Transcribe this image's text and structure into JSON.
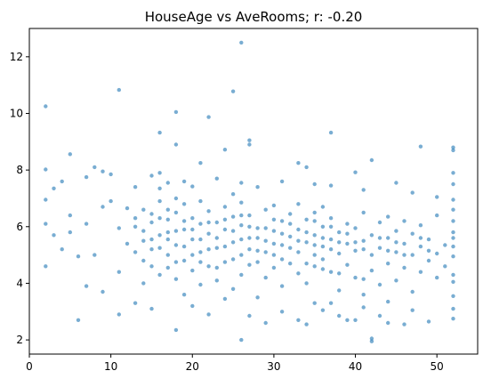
{
  "chart_data": {
    "type": "scatter",
    "title": "HouseAge vs AveRooms; r: -0.20",
    "xlabel": "",
    "ylabel": "",
    "xlim": [
      0,
      55
    ],
    "ylim": [
      1.5,
      13
    ],
    "xticks": [
      0,
      10,
      20,
      30,
      40,
      50
    ],
    "yticks": [
      2,
      4,
      6,
      8,
      10,
      12
    ],
    "grid": false,
    "marker_color": "#1f77b4",
    "marker_alpha": 0.6,
    "points": [
      [
        2,
        10.25
      ],
      [
        11,
        10.83
      ],
      [
        18,
        10.05
      ],
      [
        22,
        9.87
      ],
      [
        25,
        10.78
      ],
      [
        26,
        12.5
      ],
      [
        16,
        9.32
      ],
      [
        27,
        9.05
      ],
      [
        37,
        9.32
      ],
      [
        48,
        8.83
      ],
      [
        2,
        8.02
      ],
      [
        5,
        8.56
      ],
      [
        8,
        8.1
      ],
      [
        9,
        7.95
      ],
      [
        15,
        7.8
      ],
      [
        16,
        7.9
      ],
      [
        18,
        8.9
      ],
      [
        21,
        8.25
      ],
      [
        24,
        8.72
      ],
      [
        27,
        8.9
      ],
      [
        33,
        8.25
      ],
      [
        34,
        8.1
      ],
      [
        40,
        7.92
      ],
      [
        42,
        8.35
      ],
      [
        52,
        8.8
      ],
      [
        52,
        8.7
      ],
      [
        3,
        7.35
      ],
      [
        4,
        7.6
      ],
      [
        7,
        7.75
      ],
      [
        10,
        7.85
      ],
      [
        13,
        7.4
      ],
      [
        17,
        7.55
      ],
      [
        19,
        7.6
      ],
      [
        20,
        7.42
      ],
      [
        23,
        7.7
      ],
      [
        26,
        7.55
      ],
      [
        28,
        7.4
      ],
      [
        31,
        7.6
      ],
      [
        35,
        7.5
      ],
      [
        37,
        7.45
      ],
      [
        41,
        7.3
      ],
      [
        45,
        7.55
      ],
      [
        47,
        7.2
      ],
      [
        50,
        7.05
      ],
      [
        52,
        7.5
      ],
      [
        2,
        6.95
      ],
      [
        4,
        5.2
      ],
      [
        5,
        6.4
      ],
      [
        5,
        5.8
      ],
      [
        6,
        4.95
      ],
      [
        7,
        6.1
      ],
      [
        7,
        3.9
      ],
      [
        8,
        5.0
      ],
      [
        9,
        6.7
      ],
      [
        10,
        6.9
      ],
      [
        11,
        5.95
      ],
      [
        11,
        4.4
      ],
      [
        12,
        5.4
      ],
      [
        12,
        6.65
      ],
      [
        13,
        5.1
      ],
      [
        13,
        6.3
      ],
      [
        14,
        5.5
      ],
      [
        14,
        4.0
      ],
      [
        14,
        6.6
      ],
      [
        15,
        5.2
      ],
      [
        15,
        6.45
      ],
      [
        15,
        4.6
      ],
      [
        16,
        5.7
      ],
      [
        16,
        6.9
      ],
      [
        16,
        4.3
      ],
      [
        16,
        7.35
      ],
      [
        17,
        5.0
      ],
      [
        17,
        6.25
      ],
      [
        17,
        4.55
      ],
      [
        17,
        5.8
      ],
      [
        18,
        6.5
      ],
      [
        18,
        4.15
      ],
      [
        18,
        5.35
      ],
      [
        18,
        7.0
      ],
      [
        19,
        5.9
      ],
      [
        19,
        4.8
      ],
      [
        19,
        6.8
      ],
      [
        19,
        3.6
      ],
      [
        20,
        5.55
      ],
      [
        20,
        6.3
      ],
      [
        20,
        4.45
      ],
      [
        21,
        5.1
      ],
      [
        21,
        6.1
      ],
      [
        21,
        6.9
      ],
      [
        21,
        3.95
      ],
      [
        22,
        5.75
      ],
      [
        22,
        4.6
      ],
      [
        22,
        6.55
      ],
      [
        23,
        5.25
      ],
      [
        23,
        6.15
      ],
      [
        23,
        4.1
      ],
      [
        24,
        5.9
      ],
      [
        24,
        6.7
      ],
      [
        24,
        4.75
      ],
      [
        25,
        5.45
      ],
      [
        25,
        6.35
      ],
      [
        25,
        3.8
      ],
      [
        25,
        7.15
      ],
      [
        26,
        5.0
      ],
      [
        26,
        6.05
      ],
      [
        26,
        4.3
      ],
      [
        26,
        6.85
      ],
      [
        27,
        5.6
      ],
      [
        27,
        4.65
      ],
      [
        27,
        6.4
      ],
      [
        28,
        5.15
      ],
      [
        28,
        5.95
      ],
      [
        28,
        3.5
      ],
      [
        29,
        5.5
      ],
      [
        29,
        6.6
      ],
      [
        29,
        4.2
      ],
      [
        30,
        5.0
      ],
      [
        30,
        5.85
      ],
      [
        30,
        6.75
      ],
      [
        30,
        4.55
      ],
      [
        31,
        5.35
      ],
      [
        31,
        6.2
      ],
      [
        31,
        3.9
      ],
      [
        32,
        5.65
      ],
      [
        32,
        4.7
      ],
      [
        32,
        6.45
      ],
      [
        33,
        5.1
      ],
      [
        33,
        5.9
      ],
      [
        33,
        4.35
      ],
      [
        33,
        6.8
      ],
      [
        34,
        5.45
      ],
      [
        34,
        6.25
      ],
      [
        34,
        4.0
      ],
      [
        35,
        5.0
      ],
      [
        35,
        5.7
      ],
      [
        35,
        6.5
      ],
      [
        35,
        4.6
      ],
      [
        35,
        3.3
      ],
      [
        36,
        5.3
      ],
      [
        36,
        6.0
      ],
      [
        36,
        4.85
      ],
      [
        36,
        6.7
      ],
      [
        37,
        5.55
      ],
      [
        37,
        4.4
      ],
      [
        37,
        6.3
      ],
      [
        38,
        5.05
      ],
      [
        38,
        5.8
      ],
      [
        38,
        3.75
      ],
      [
        39,
        5.4
      ],
      [
        39,
        6.1
      ],
      [
        39,
        4.65
      ],
      [
        40,
        5.15
      ],
      [
        40,
        5.95
      ],
      [
        40,
        4.2
      ],
      [
        41,
        5.5
      ],
      [
        41,
        6.5
      ],
      [
        41,
        3.6
      ],
      [
        42,
        5.0
      ],
      [
        42,
        5.7
      ],
      [
        42,
        4.45
      ],
      [
        42,
        2.05
      ],
      [
        42,
        1.95
      ],
      [
        43,
        5.25
      ],
      [
        43,
        6.15
      ],
      [
        43,
        3.95
      ],
      [
        44,
        5.6
      ],
      [
        44,
        4.7
      ],
      [
        44,
        6.35
      ],
      [
        45,
        5.1
      ],
      [
        45,
        4.1
      ],
      [
        45,
        5.85
      ],
      [
        46,
        5.4
      ],
      [
        46,
        4.55
      ],
      [
        46,
        6.2
      ],
      [
        47,
        5.0
      ],
      [
        47,
        3.7
      ],
      [
        47,
        5.75
      ],
      [
        48,
        5.3
      ],
      [
        48,
        4.4
      ],
      [
        48,
        6.05
      ],
      [
        49,
        5.55
      ],
      [
        49,
        4.8
      ],
      [
        50,
        5.05
      ],
      [
        50,
        4.2
      ],
      [
        50,
        6.4
      ],
      [
        51,
        5.35
      ],
      [
        51,
        4.6
      ],
      [
        52,
        5.8
      ],
      [
        52,
        4.95
      ],
      [
        52,
        6.6
      ],
      [
        52,
        4.3
      ],
      [
        52,
        3.1
      ],
      [
        52,
        2.75
      ],
      [
        52,
        6.95
      ],
      [
        52,
        5.3
      ],
      [
        52,
        4.05
      ],
      [
        52,
        3.55
      ],
      [
        52,
        7.9
      ],
      [
        52,
        6.2
      ],
      [
        52,
        5.6
      ],
      [
        2,
        6.1
      ],
      [
        2,
        4.6
      ],
      [
        3,
        5.7
      ],
      [
        6,
        2.7
      ],
      [
        9,
        3.7
      ],
      [
        11,
        2.9
      ],
      [
        13,
        3.3
      ],
      [
        15,
        3.1
      ],
      [
        18,
        2.35
      ],
      [
        20,
        3.2
      ],
      [
        22,
        2.9
      ],
      [
        24,
        3.45
      ],
      [
        26,
        2.0
      ],
      [
        27,
        2.85
      ],
      [
        29,
        2.6
      ],
      [
        31,
        3.0
      ],
      [
        33,
        2.7
      ],
      [
        34,
        2.55
      ],
      [
        36,
        3.05
      ],
      [
        38,
        2.85
      ],
      [
        39,
        2.7
      ],
      [
        41,
        3.15
      ],
      [
        43,
        2.85
      ],
      [
        44,
        3.35
      ],
      [
        46,
        2.55
      ],
      [
        47,
        3.05
      ],
      [
        49,
        2.65
      ],
      [
        40,
        2.7
      ],
      [
        37,
        3.3
      ],
      [
        44,
        2.6
      ],
      [
        13,
        6.0
      ],
      [
        14,
        5.85
      ],
      [
        14,
        4.8
      ],
      [
        15,
        5.55
      ],
      [
        15,
        6.15
      ],
      [
        16,
        5.25
      ],
      [
        16,
        6.3
      ],
      [
        17,
        5.55
      ],
      [
        17,
        6.6
      ],
      [
        18,
        5.85
      ],
      [
        18,
        4.75
      ],
      [
        19,
        5.3
      ],
      [
        19,
        6.2
      ],
      [
        20,
        5.0
      ],
      [
        20,
        5.9
      ],
      [
        21,
        5.55
      ],
      [
        21,
        4.75
      ],
      [
        22,
        5.2
      ],
      [
        22,
        6.15
      ],
      [
        23,
        5.6
      ],
      [
        23,
        4.55
      ],
      [
        24,
        5.3
      ],
      [
        24,
        6.25
      ],
      [
        25,
        5.85
      ],
      [
        25,
        4.85
      ],
      [
        26,
        5.55
      ],
      [
        26,
        6.4
      ],
      [
        27,
        5.2
      ],
      [
        27,
        6.0
      ],
      [
        28,
        5.6
      ],
      [
        28,
        4.75
      ],
      [
        29,
        5.1
      ],
      [
        29,
        5.95
      ],
      [
        30,
        5.4
      ],
      [
        30,
        6.25
      ],
      [
        31,
        5.75
      ],
      [
        31,
        4.85
      ],
      [
        32,
        5.25
      ],
      [
        32,
        6.1
      ],
      [
        33,
        5.5
      ],
      [
        34,
        5.8
      ],
      [
        34,
        4.7
      ],
      [
        35,
        5.35
      ],
      [
        35,
        6.2
      ],
      [
        36,
        5.6
      ],
      [
        36,
        4.5
      ],
      [
        37,
        5.2
      ],
      [
        37,
        6.0
      ],
      [
        38,
        5.45
      ],
      [
        38,
        4.35
      ],
      [
        39,
        5.75
      ],
      [
        40,
        5.45
      ],
      [
        41,
        5.2
      ],
      [
        41,
        4.15
      ],
      [
        43,
        5.6
      ],
      [
        44,
        5.15
      ],
      [
        45,
        5.45
      ],
      [
        46,
        5.0
      ],
      [
        48,
        5.6
      ],
      [
        49,
        5.15
      ]
    ]
  }
}
